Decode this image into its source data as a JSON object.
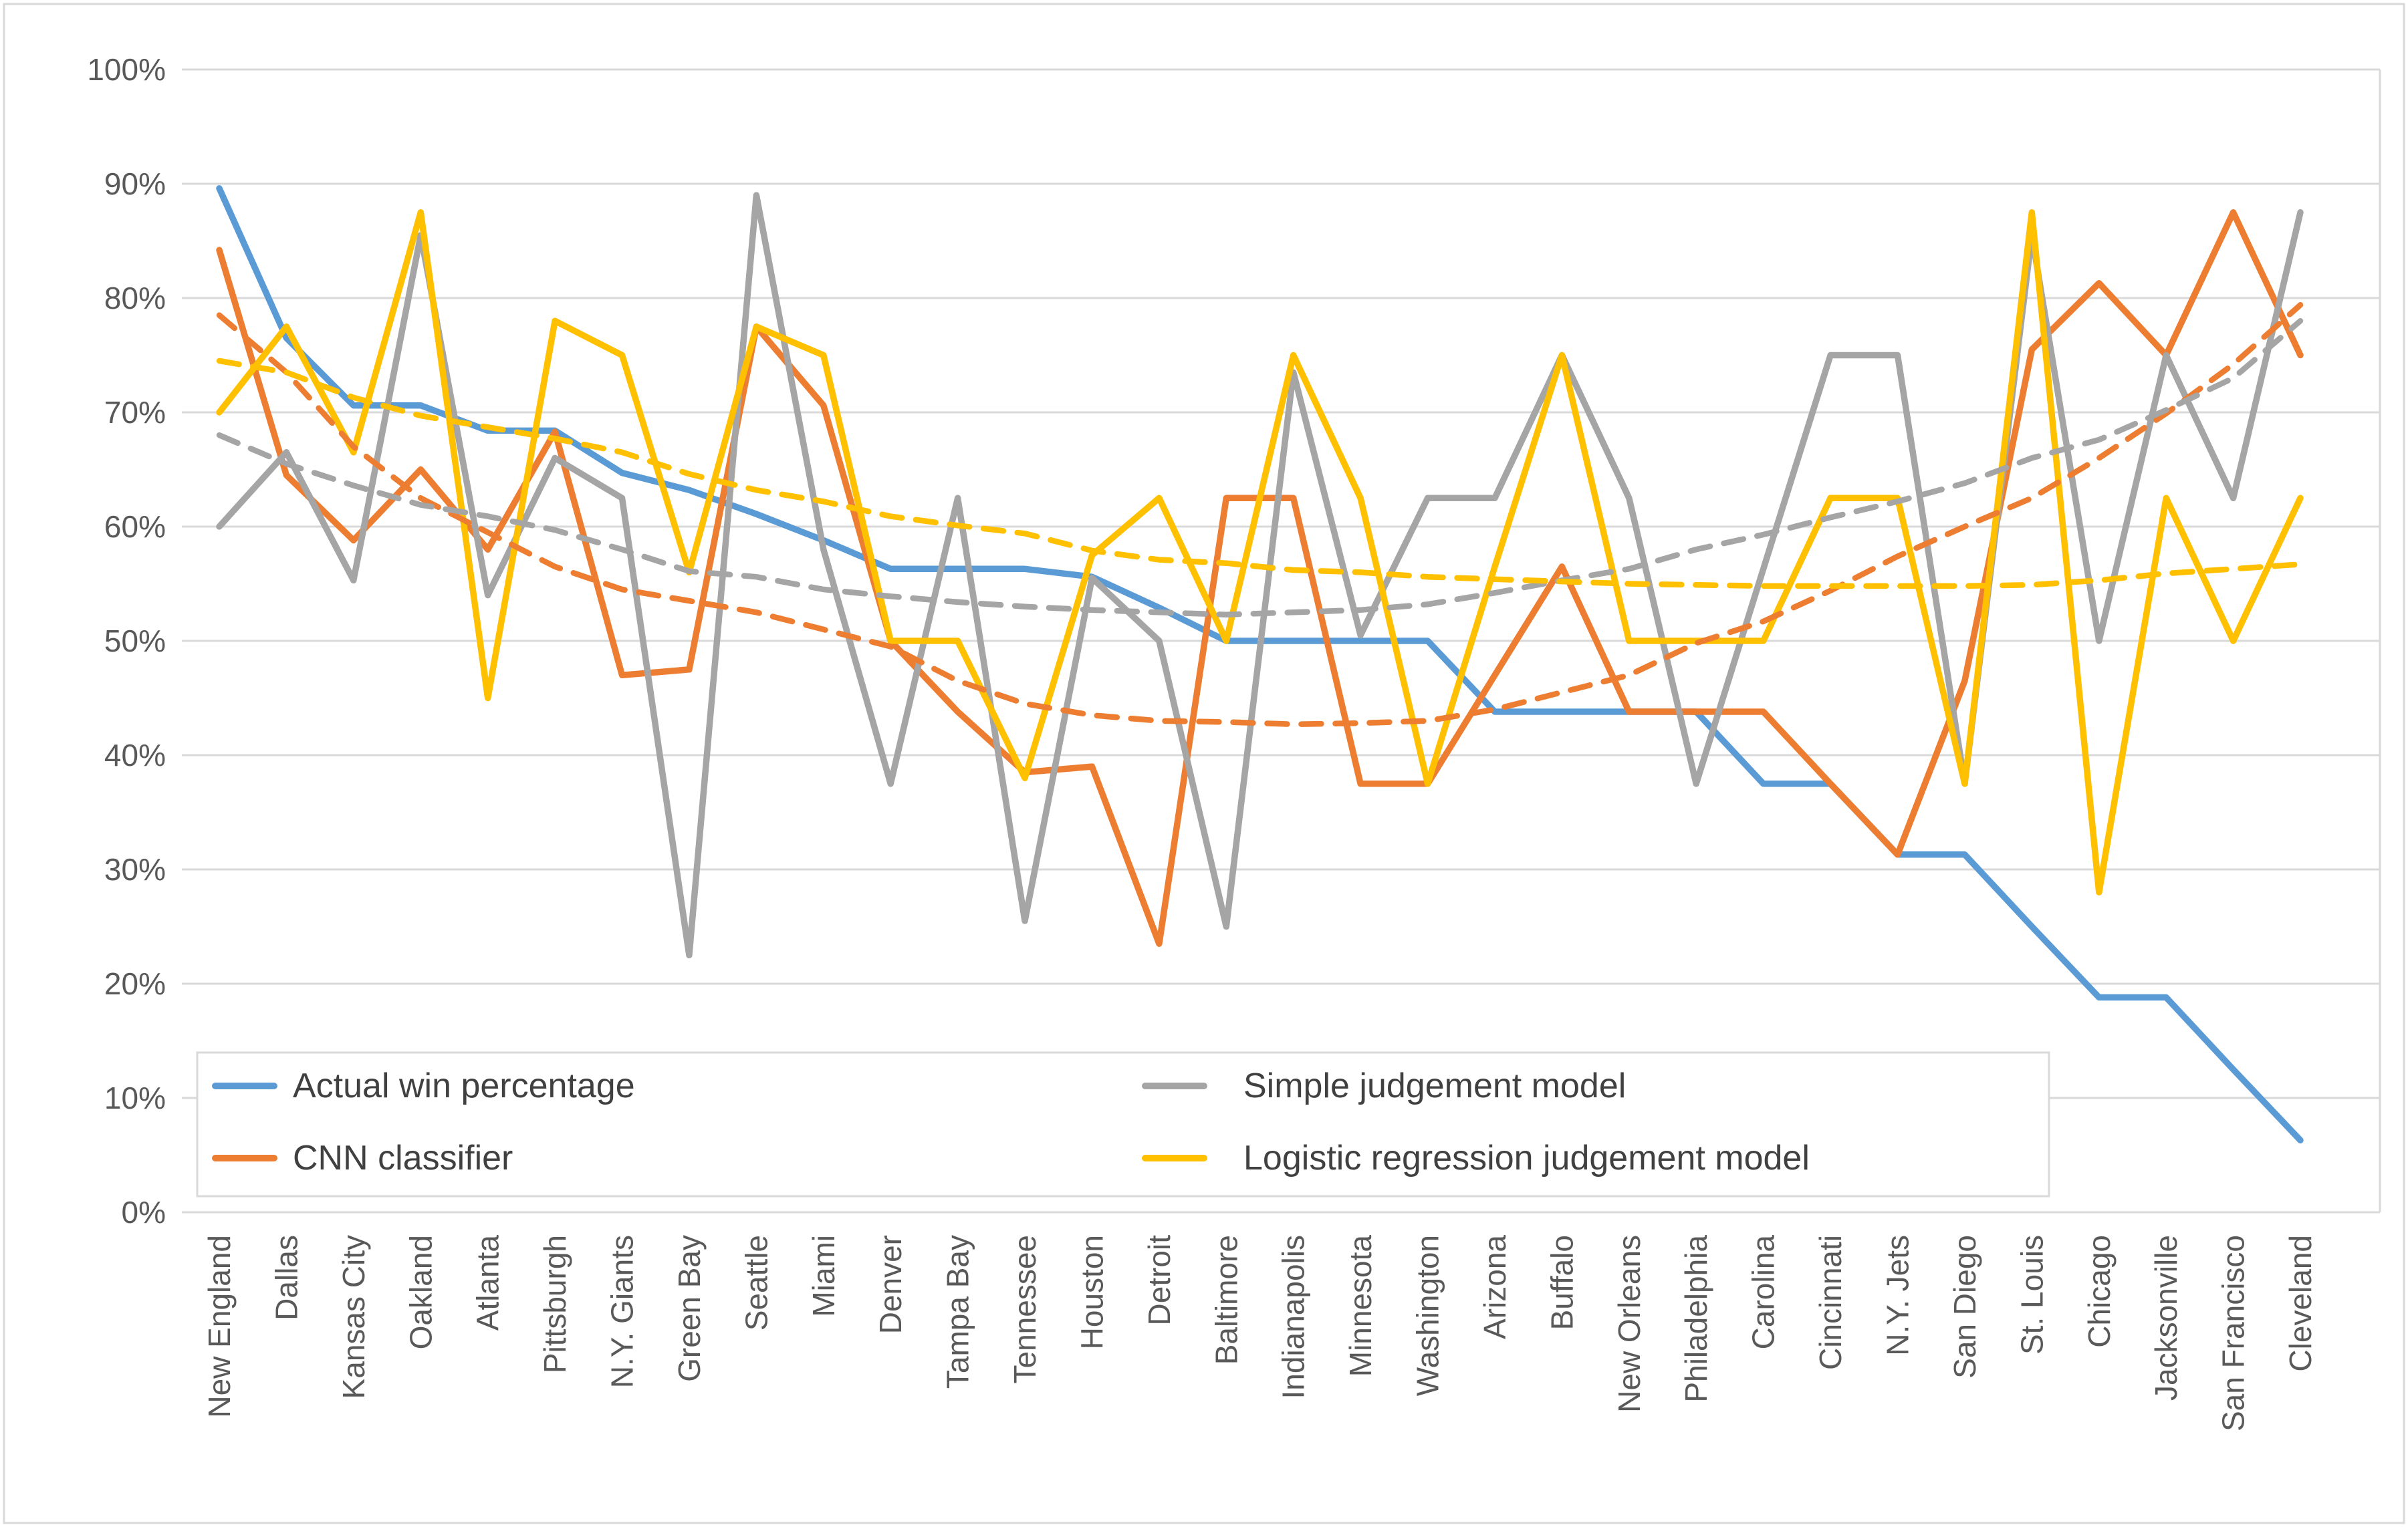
{
  "chart_data": {
    "type": "line",
    "categories": [
      "New England",
      "Dallas",
      "Kansas City",
      "Oakland",
      "Atlanta",
      "Pittsburgh",
      "N.Y. Giants",
      "Green Bay",
      "Seattle",
      "Miami",
      "Denver",
      "Tampa Bay",
      "Tennessee",
      "Houston",
      "Detroit",
      "Baltimore",
      "Indianapolis",
      "Minnesota",
      "Washington",
      "Arizona",
      "Buffalo",
      "New Orleans",
      "Philadelphia",
      "Carolina",
      "Cincinnati",
      "N.Y. Jets",
      "San Diego",
      "St. Louis",
      "Chicago",
      "Jacksonville",
      "San Francisco",
      "Cleveland"
    ],
    "series": [
      {
        "name": "Actual win percentage",
        "color": "#5B9BD5",
        "style": "solid",
        "in_legend": true,
        "values": [
          89.6,
          76.5,
          70.6,
          70.6,
          68.4,
          68.4,
          64.7,
          63.2,
          61.1,
          58.8,
          56.3,
          56.3,
          56.3,
          55.6,
          52.9,
          50,
          50,
          50,
          50,
          43.8,
          43.8,
          43.8,
          43.8,
          37.5,
          37.5,
          31.3,
          31.3,
          25,
          18.8,
          18.8,
          12.5,
          6.3
        ]
      },
      {
        "name": "CNN classifier",
        "color": "#ED7D31",
        "style": "solid",
        "in_legend": true,
        "values": [
          84.2,
          64.5,
          58.8,
          65,
          58,
          68.3,
          47,
          47.5,
          77.5,
          70.6,
          50,
          43.8,
          38.5,
          39,
          23.5,
          62.5,
          62.5,
          37.5,
          37.5,
          47,
          56.5,
          43.8,
          43.8,
          43.8,
          37.5,
          31.3,
          46.5,
          75.5,
          81.3,
          75,
          87.5,
          75
        ]
      },
      {
        "name": "Simple judgement model",
        "color": "#A5A5A5",
        "style": "solid",
        "in_legend": true,
        "values": [
          60,
          66.5,
          55.3,
          85.5,
          54,
          66,
          62.5,
          22.5,
          89,
          58,
          37.5,
          62.5,
          25.5,
          55.5,
          50,
          25,
          73.5,
          50.5,
          62.5,
          62.5,
          75,
          62.5,
          37.5,
          56.3,
          75,
          75,
          37.5,
          85.5,
          50,
          75,
          62.5,
          87.5
        ]
      },
      {
        "name": "Logistic regression judgement model",
        "color": "#FFC000",
        "style": "solid",
        "in_legend": true,
        "values": [
          70,
          77.5,
          66.5,
          87.5,
          45,
          78,
          75,
          56,
          77.5,
          75,
          50,
          50,
          38,
          57.5,
          62.5,
          50,
          75,
          62.5,
          37.5,
          56.5,
          75,
          50,
          50,
          50,
          62.5,
          62.5,
          37.5,
          87.5,
          28,
          62.5,
          50,
          62.5
        ]
      },
      {
        "name": "CNN classifier trendline",
        "color": "#ED7D31",
        "style": "dashed",
        "in_legend": false,
        "values": [
          78.5,
          73.5,
          67,
          62.5,
          59.5,
          56.5,
          54.5,
          53.5,
          52.5,
          51,
          49.5,
          46.5,
          44.5,
          43.5,
          43,
          42.9,
          42.7,
          42.8,
          43,
          44,
          45.5,
          47,
          49.8,
          51.7,
          54.4,
          57.4,
          60,
          62.5,
          66,
          69.9,
          74.2,
          79.4
        ]
      },
      {
        "name": "Simple judgement model trendline",
        "color": "#A5A5A5",
        "style": "dashed",
        "in_legend": false,
        "values": [
          68,
          65.5,
          63.6,
          61.9,
          60.9,
          59.7,
          58,
          56.1,
          55.6,
          54.5,
          53.9,
          53.4,
          53,
          52.7,
          52.5,
          52.3,
          52.5,
          52.7,
          53.2,
          54.2,
          55.3,
          56.3,
          58,
          59.3,
          60.8,
          62.2,
          63.8,
          66,
          67.6,
          70.2,
          73,
          78
        ]
      },
      {
        "name": "Logistic regression judgement model trendline",
        "color": "#FFC000",
        "style": "dashed",
        "in_legend": false,
        "values": [
          74.5,
          73.5,
          71.3,
          69.7,
          68.7,
          67.7,
          66.5,
          64.6,
          63.2,
          62.2,
          60.9,
          60.1,
          59.4,
          57.9,
          57.1,
          56.8,
          56.2,
          56,
          55.6,
          55.4,
          55.2,
          55,
          54.9,
          54.8,
          54.8,
          54.8,
          54.8,
          54.9,
          55.3,
          55.9,
          56.3,
          56.7
        ]
      }
    ],
    "y_axis": {
      "tick_labels": [
        "0%",
        "10%",
        "20%",
        "30%",
        "40%",
        "50%",
        "60%",
        "70%",
        "80%",
        "90%",
        "100%"
      ],
      "min": 0,
      "max": 100
    },
    "xlabel": "",
    "ylabel": "",
    "grid": true,
    "legend": {
      "position": "bottom-left-inside",
      "entries": [
        {
          "label": "Actual win percentage",
          "color": "#5B9BD5"
        },
        {
          "label": "CNN classifier",
          "color": "#ED7D31"
        },
        {
          "label": "Simple judgement model",
          "color": "#A5A5A5"
        },
        {
          "label": "Logistic regression judgement model",
          "color": "#FFC000"
        }
      ]
    }
  },
  "style": {
    "gridline_color": "#D9D9D9",
    "border_color": "#D9D9D9",
    "tick_label_color": "#595959",
    "legend_text_color": "#404040",
    "background": "#FFFFFF"
  }
}
